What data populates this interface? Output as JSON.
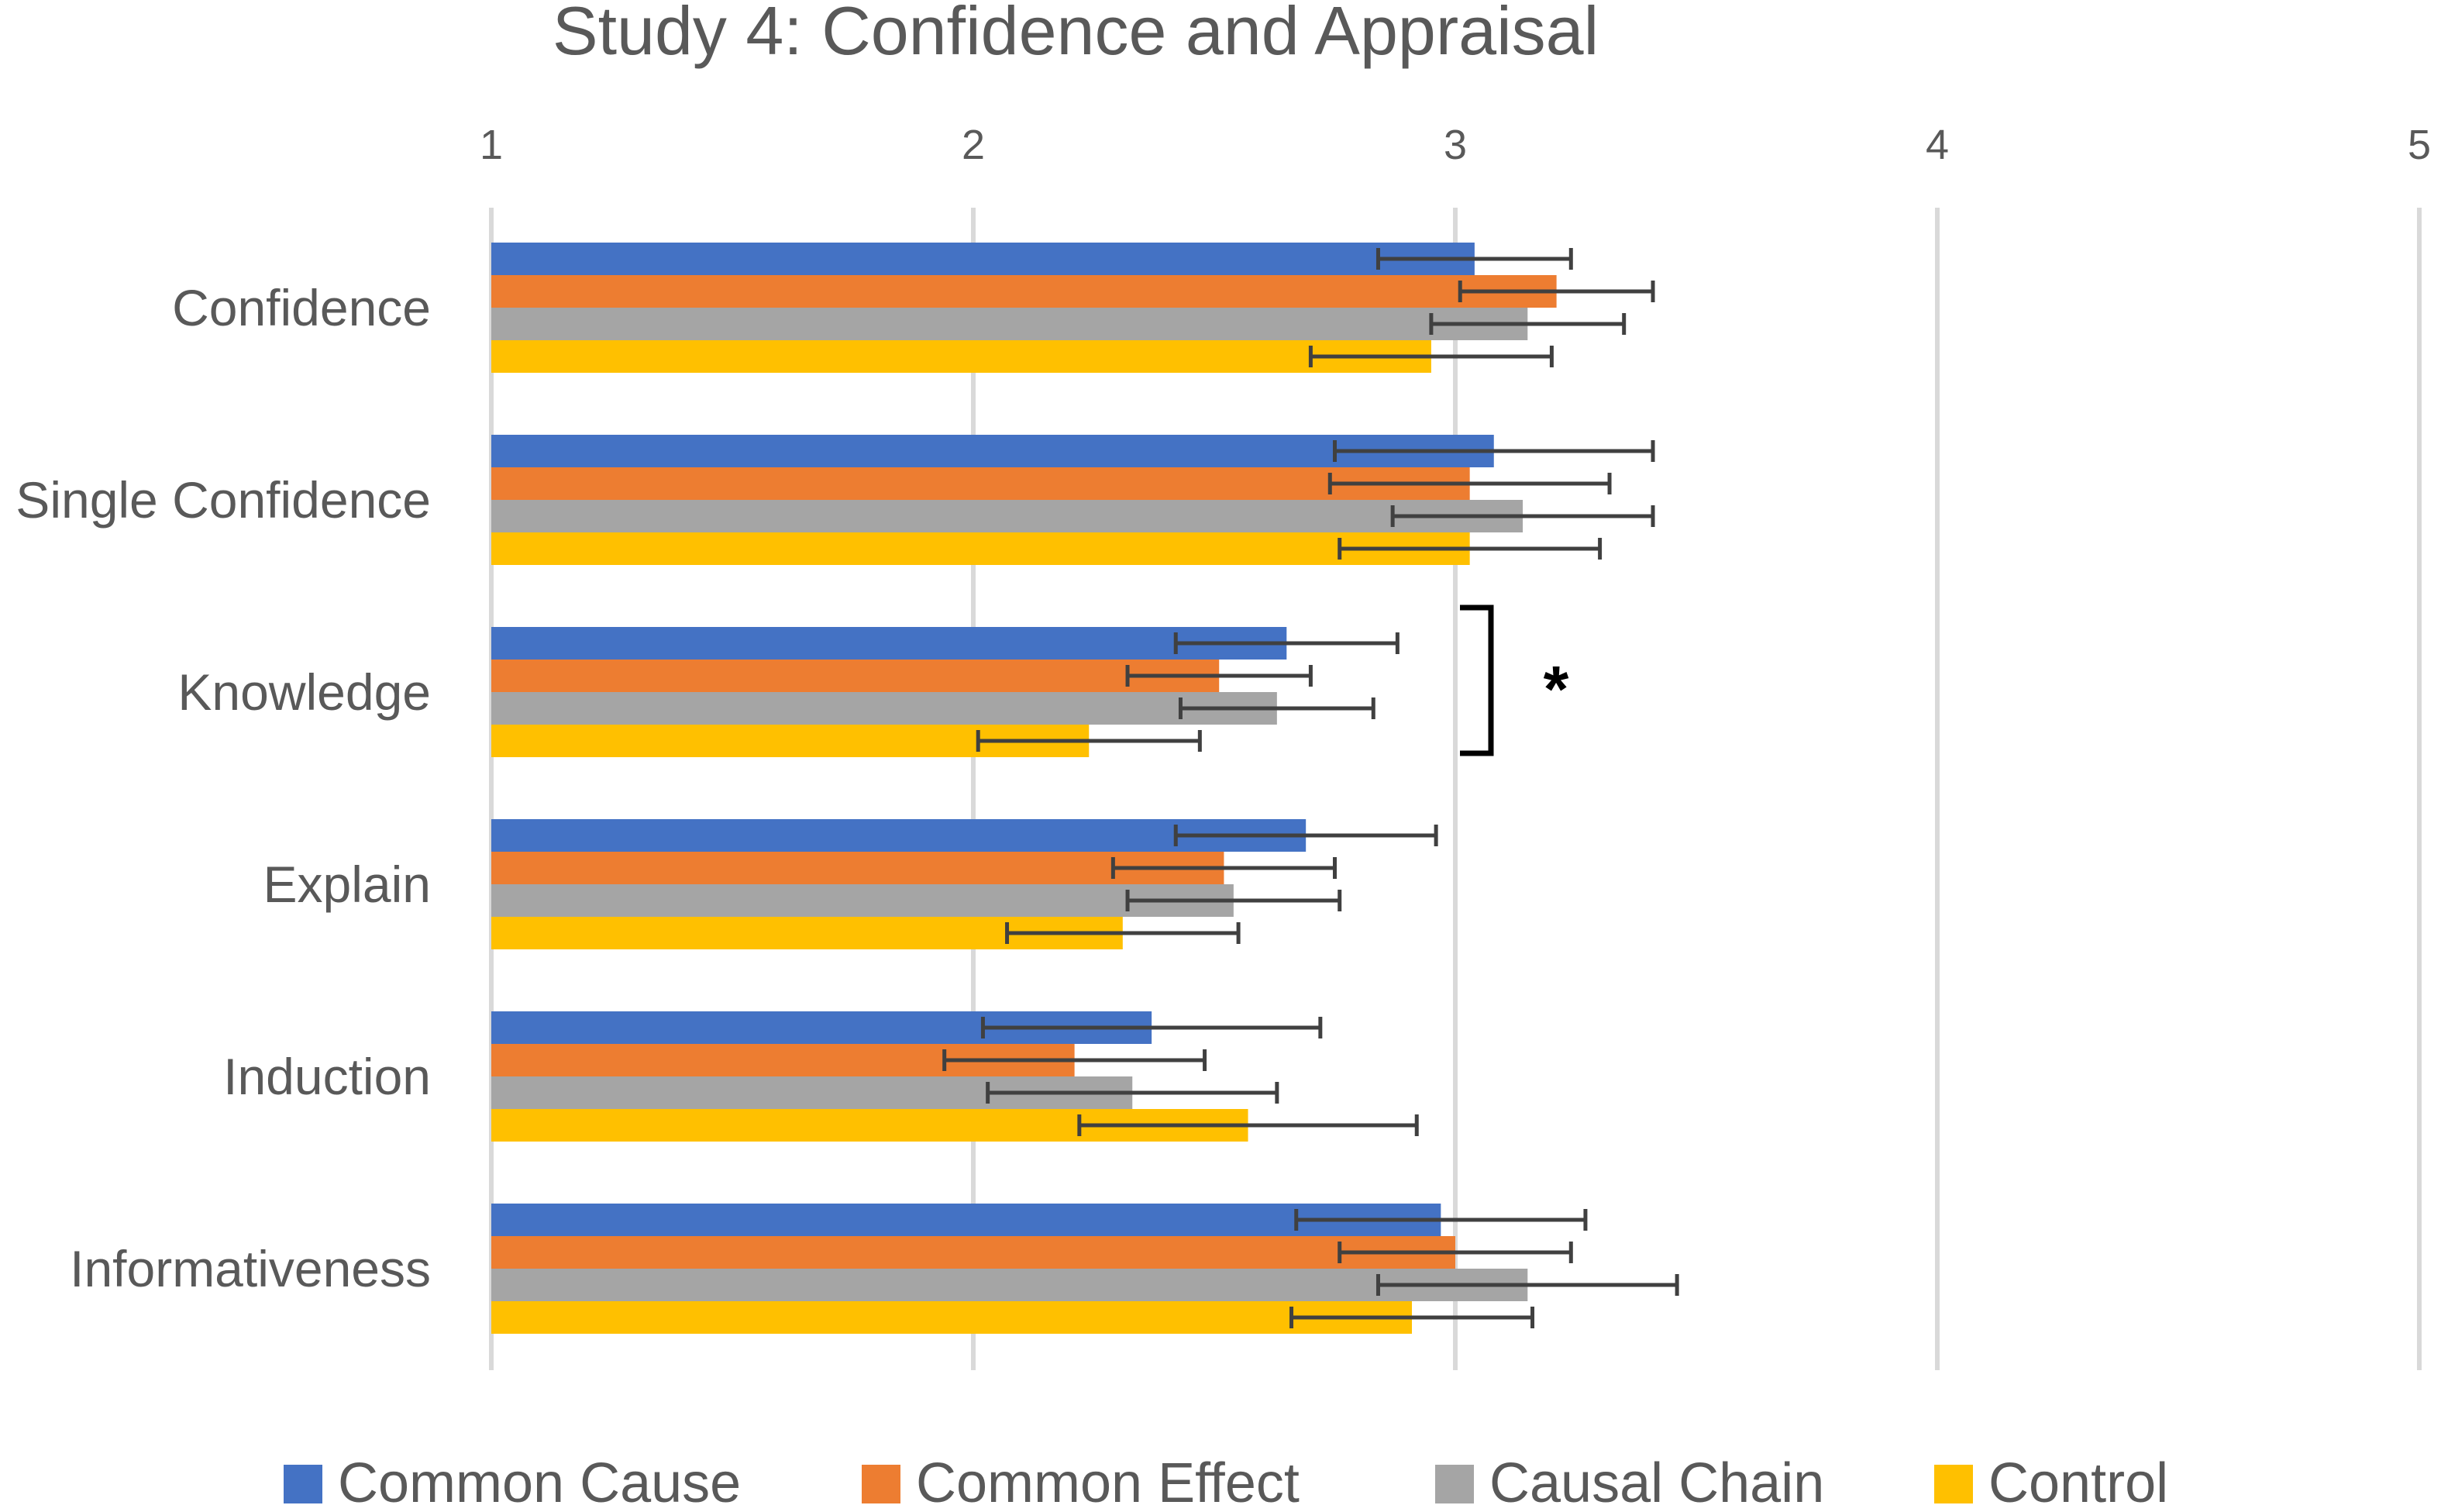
{
  "chart_data": {
    "type": "bar",
    "orientation": "horizontal",
    "title": "Study 4: Confidence and Appraisal",
    "xlabel": "",
    "ylabel": "",
    "xlim": [
      1,
      5
    ],
    "xticks": [
      "1",
      "2",
      "3",
      "4",
      "5"
    ],
    "grid": true,
    "legend_position": "bottom",
    "categories": [
      "Confidence",
      "Single Confidence",
      "Knowledge",
      "Explain",
      "Induction",
      "Informativeness"
    ],
    "series": [
      {
        "name": "Common Cause",
        "color": "#4472C4",
        "values": [
          3.04,
          3.08,
          2.65,
          2.69,
          2.37,
          2.97
        ],
        "error": [
          0.2,
          0.33,
          0.23,
          0.27,
          0.35,
          0.3
        ]
      },
      {
        "name": "Common Effect",
        "color": "#ED7D31",
        "values": [
          3.21,
          3.03,
          2.51,
          2.52,
          2.21,
          3.0
        ],
        "error": [
          0.2,
          0.29,
          0.19,
          0.23,
          0.27,
          0.24
        ]
      },
      {
        "name": "Causal Chain",
        "color": "#A5A5A5",
        "values": [
          3.15,
          3.14,
          2.63,
          2.54,
          2.33,
          3.15
        ],
        "error": [
          0.2,
          0.27,
          0.2,
          0.22,
          0.3,
          0.31
        ]
      },
      {
        "name": "Control",
        "color": "#FFC000",
        "values": [
          2.95,
          3.03,
          2.24,
          2.31,
          2.57,
          2.91
        ],
        "error": [
          0.25,
          0.27,
          0.23,
          0.24,
          0.35,
          0.25
        ]
      }
    ],
    "annotation": {
      "text": "*",
      "category": "Knowledge"
    }
  }
}
